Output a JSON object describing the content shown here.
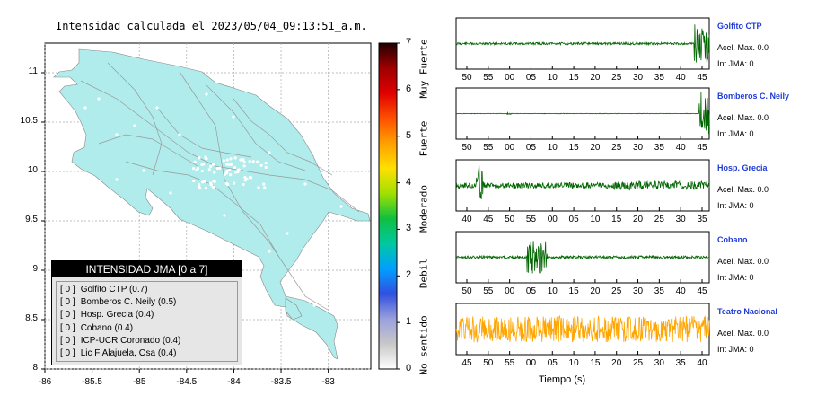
{
  "map": {
    "title": "Intensidad calculada el 2023/05/04_09:13:51_a.m.",
    "y_ticks": [
      "11",
      "10.5",
      "10",
      "9.5",
      "9",
      "8.5",
      "8"
    ],
    "x_ticks": [
      "-86",
      "-85.5",
      "-85",
      "-84.5",
      "-84",
      "-83.5",
      "-83"
    ],
    "land_color": "#b0ecec",
    "sea_color": "#ffffff"
  },
  "legend": {
    "title": "INTENSIDAD JMA [0 a 7]",
    "entries": [
      {
        "value": "[ 0 ]",
        "station": "Golfito CTP (0.7)"
      },
      {
        "value": "[ 0 ]",
        "station": "Bomberos C. Neily (0.5)"
      },
      {
        "value": "[ 0 ]",
        "station": "Hosp. Grecia (0.4)"
      },
      {
        "value": "[ 0 ]",
        "station": "Cobano (0.4)"
      },
      {
        "value": "[ 0 ]",
        "station": "ICP-UCR Coronado (0.4)"
      },
      {
        "value": "[ 0 ]",
        "station": "Lic F Alajuela, Osa (0.4)"
      }
    ]
  },
  "colorbar": {
    "ticks": [
      "0",
      "1",
      "2",
      "3",
      "4",
      "5",
      "6",
      "7"
    ],
    "categories": [
      "No sentido",
      "Debil",
      "Moderado",
      "Fuerte",
      "Muy Fuerte"
    ]
  },
  "traces": [
    {
      "name": "Golfito CTP",
      "acel": "Acel. Max. 0.0",
      "jma": "Int JMA: 0",
      "color": "#006400",
      "ticks": [
        "50",
        "55",
        "00",
        "05",
        "10",
        "15",
        "20",
        "25",
        "30",
        "35",
        "40",
        "45"
      ]
    },
    {
      "name": "Bomberos C. Neily",
      "acel": "Acel. Max. 0.0",
      "jma": "Int JMA: 0",
      "color": "#006400",
      "ticks": [
        "50",
        "55",
        "00",
        "05",
        "10",
        "15",
        "20",
        "25",
        "30",
        "35",
        "40",
        "45"
      ]
    },
    {
      "name": "Hosp. Grecia",
      "acel": "Acel. Max. 0.0",
      "jma": "Int JMA: 0",
      "color": "#006400",
      "ticks": [
        "40",
        "45",
        "50",
        "55",
        "00",
        "05",
        "10",
        "15",
        "20",
        "25",
        "30",
        "35"
      ]
    },
    {
      "name": "Cobano",
      "acel": "Acel. Max. 0.0",
      "jma": "Int JMA: 0",
      "color": "#006400",
      "ticks": [
        "50",
        "55",
        "00",
        "05",
        "10",
        "15",
        "20",
        "25",
        "30",
        "35",
        "40",
        "45"
      ]
    },
    {
      "name": "Teatro Nacional",
      "acel": "Acel. Max. 0.0",
      "jma": "Int JMA: 0",
      "color": "#ffa500",
      "ticks": [
        "45",
        "50",
        "55",
        "00",
        "05",
        "10",
        "15",
        "20",
        "25",
        "30",
        "35",
        "40"
      ]
    }
  ],
  "time_label": "Tiempo (s)",
  "chart_data": [
    {
      "type": "scatter",
      "title": "Intensidad calculada el 2023/05/04_09:13:51_a.m.",
      "xlim": [
        -86,
        -82.55
      ],
      "ylim": [
        8,
        11.3
      ],
      "x_ticks": [
        -86,
        -85.5,
        -85,
        -84.5,
        -84,
        -83.5,
        -83
      ],
      "y_ticks": [
        8,
        8.5,
        9,
        9.5,
        10,
        10.5,
        11
      ]
    },
    {
      "type": "heatmap",
      "colorbar_range": [
        0,
        7
      ],
      "categories": [
        "No sentido",
        "Debil",
        "Moderado",
        "Fuerte",
        "Muy Fuerte"
      ]
    }
  ]
}
